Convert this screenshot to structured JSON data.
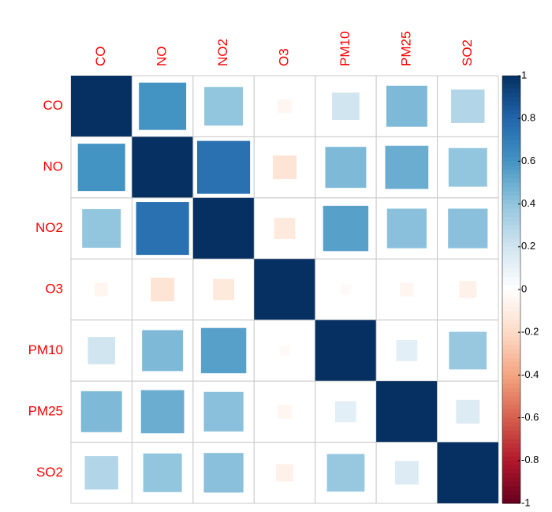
{
  "chart_data": {
    "type": "corrplot",
    "categories": [
      "CO",
      "NO",
      "NO2",
      "O3",
      "PM10",
      "PM25",
      "SO2"
    ],
    "values": [
      [
        1,
        0.6,
        0.4,
        -0.05,
        0.2,
        0.45,
        0.3
      ],
      [
        0.6,
        1,
        0.75,
        -0.15,
        0.45,
        0.5,
        0.4
      ],
      [
        0.4,
        0.75,
        1,
        -0.12,
        0.55,
        0.42,
        0.42
      ],
      [
        -0.05,
        -0.15,
        -0.12,
        1,
        -0.03,
        -0.05,
        -0.08
      ],
      [
        0.2,
        0.45,
        0.55,
        -0.03,
        1,
        0.12,
        0.38
      ],
      [
        0.45,
        0.5,
        0.42,
        -0.05,
        0.12,
        1,
        0.15
      ],
      [
        0.3,
        0.4,
        0.42,
        -0.08,
        0.38,
        0.15,
        1
      ]
    ],
    "label_color": "#ff0000",
    "colorscale": [
      "#67001F",
      "#B2182B",
      "#D6604D",
      "#F4A582",
      "#FDDBC7",
      "#FFFFFF",
      "#D1E5F0",
      "#92C5DE",
      "#4393C3",
      "#2166AC",
      "#053061"
    ],
    "clim": [
      -1,
      1
    ],
    "cticks": [
      1,
      0.8,
      0.6,
      0.4,
      0.2,
      0,
      -0.2,
      -0.4,
      -0.6,
      -0.8,
      -1
    ]
  }
}
